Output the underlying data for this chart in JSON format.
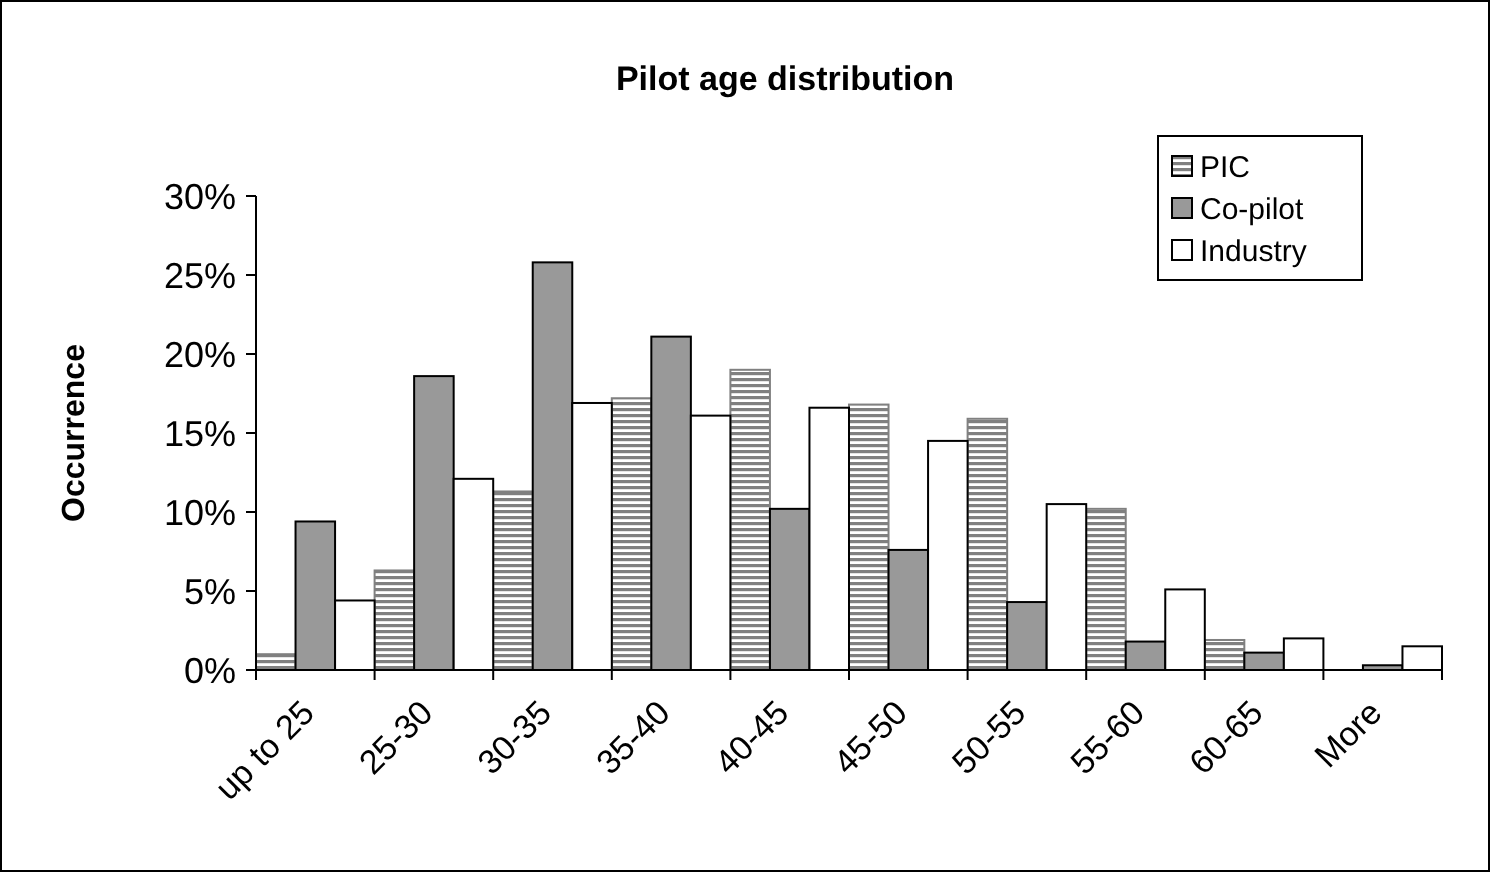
{
  "chart_data": {
    "type": "bar",
    "title": "Pilot age distribution",
    "ylabel": "Occurrence",
    "categories": [
      "up to 25",
      "25-30",
      "30-35",
      "35-40",
      "40-45",
      "45-50",
      "50-55",
      "55-60",
      "60-65",
      "More"
    ],
    "series": [
      {
        "name": "PIC",
        "color": "#808080",
        "values": [
          1.0,
          6.3,
          11.3,
          17.2,
          19.0,
          16.8,
          15.9,
          10.2,
          1.9,
          0
        ]
      },
      {
        "name": "Co-pilot",
        "color": "#999999",
        "values": [
          9.4,
          18.6,
          25.8,
          21.1,
          10.2,
          7.6,
          4.3,
          1.8,
          1.1,
          0.3
        ]
      },
      {
        "name": "Industry",
        "color": "#ffffff",
        "values": [
          4.4,
          12.1,
          16.9,
          16.1,
          16.6,
          14.5,
          10.5,
          5.1,
          2.0,
          1.5
        ]
      }
    ],
    "ylim": [
      0,
      30
    ],
    "yticks": [
      {
        "value": 0,
        "label": "0%"
      },
      {
        "value": 5,
        "label": "5%"
      },
      {
        "value": 10,
        "label": "10%"
      },
      {
        "value": 15,
        "label": "15%"
      },
      {
        "value": 20,
        "label": "20%"
      },
      {
        "value": 25,
        "label": "25%"
      },
      {
        "value": 30,
        "label": "30%"
      }
    ],
    "grid": false,
    "legend": "top right"
  }
}
